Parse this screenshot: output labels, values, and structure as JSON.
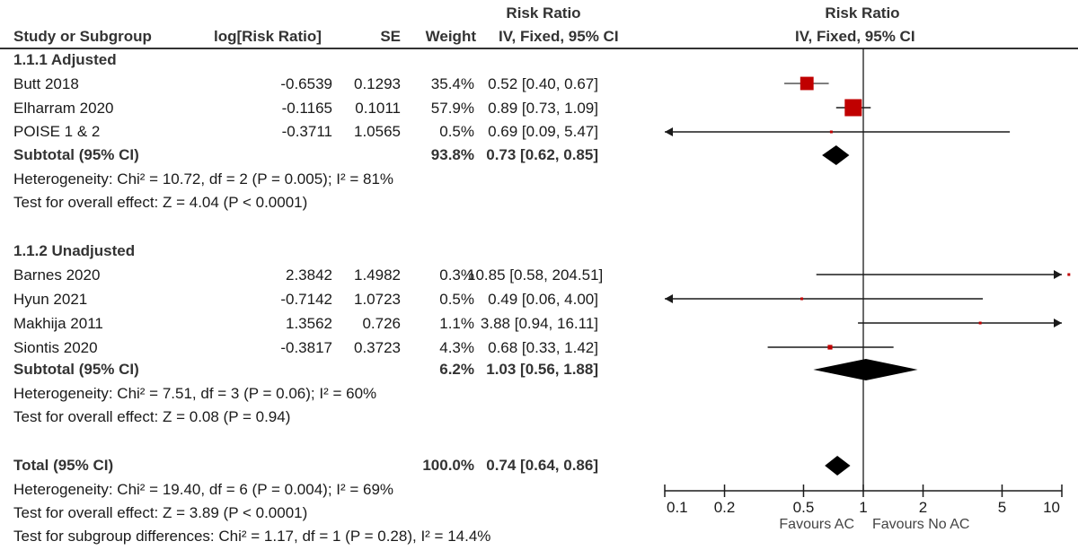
{
  "headers": {
    "study": "Study or Subgroup",
    "logrr": "log[Risk Ratio]",
    "se": "SE",
    "weight": "Weight",
    "rr_top": "Risk Ratio",
    "rr_bottom": "IV, Fixed, 95% CI",
    "plot_top": "Risk Ratio",
    "plot_bottom": "IV, Fixed, 95% CI"
  },
  "chart_data": {
    "type": "forest",
    "title": "Risk Ratio IV, Fixed, 95% CI",
    "xscale": "log",
    "xlim": [
      0.1,
      10
    ],
    "xticks": [
      0.1,
      0.2,
      0.5,
      1,
      2,
      5,
      10
    ],
    "xtick_labels": [
      "0.1",
      "0.2",
      "0.5",
      "1",
      "2",
      "5",
      "10"
    ],
    "favours_left": "Favours AC",
    "favours_right": "Favours No AC",
    "marker_color": "#c00000",
    "subgroups": [
      {
        "label": "1.1.1 Adjusted",
        "studies": [
          {
            "name": "Butt 2018",
            "logrr": "-0.6539",
            "se": "0.1293",
            "weight": "35.4%",
            "ci_text": "0.52 [0.40, 0.67]",
            "rr": 0.52,
            "lo": 0.4,
            "hi": 0.67,
            "w": 35.4
          },
          {
            "name": "Elharram 2020",
            "logrr": "-0.1165",
            "se": "0.1011",
            "weight": "57.9%",
            "ci_text": "0.89 [0.73, 1.09]",
            "rr": 0.89,
            "lo": 0.73,
            "hi": 1.09,
            "w": 57.9
          },
          {
            "name": "POISE 1 & 2",
            "logrr": "-0.3711",
            "se": "1.0565",
            "weight": "0.5%",
            "ci_text": "0.69 [0.09, 5.47]",
            "rr": 0.69,
            "lo": 0.09,
            "hi": 5.47,
            "w": 0.5
          }
        ],
        "subtotal": {
          "label": "Subtotal (95% CI)",
          "weight": "93.8%",
          "ci_text": "0.73 [0.62, 0.85]",
          "rr": 0.73,
          "lo": 0.62,
          "hi": 0.85
        },
        "heterogeneity": "Heterogeneity: Chi² = 10.72, df = 2 (P = 0.005); I² = 81%",
        "overall_effect": "Test for overall effect: Z = 4.04 (P < 0.0001)"
      },
      {
        "label": "1.1.2 Unadjusted",
        "studies": [
          {
            "name": "Barnes 2020",
            "logrr": "2.3842",
            "se": "1.4982",
            "weight": "0.3%",
            "ci_text": "10.85 [0.58, 204.51]",
            "rr": 10.85,
            "lo": 0.58,
            "hi": 204.51,
            "w": 0.3
          },
          {
            "name": "Hyun 2021",
            "logrr": "-0.7142",
            "se": "1.0723",
            "weight": "0.5%",
            "ci_text": "0.49 [0.06, 4.00]",
            "rr": 0.49,
            "lo": 0.06,
            "hi": 4.0,
            "w": 0.5
          },
          {
            "name": "Makhija 2011",
            "logrr": "1.3562",
            "se": "0.726",
            "weight": "1.1%",
            "ci_text": "3.88 [0.94, 16.11]",
            "rr": 3.88,
            "lo": 0.94,
            "hi": 16.11,
            "w": 1.1
          },
          {
            "name": "Siontis 2020",
            "logrr": "-0.3817",
            "se": "0.3723",
            "weight": "4.3%",
            "ci_text": "0.68 [0.33, 1.42]",
            "rr": 0.68,
            "lo": 0.33,
            "hi": 1.42,
            "w": 4.3
          }
        ],
        "subtotal": {
          "label": "Subtotal (95% CI)",
          "weight": "6.2%",
          "ci_text": "1.03 [0.56, 1.88]",
          "rr": 1.03,
          "lo": 0.56,
          "hi": 1.88
        },
        "heterogeneity": "Heterogeneity: Chi² = 7.51, df = 3 (P = 0.06); I² = 60%",
        "overall_effect": "Test for overall effect: Z = 0.08 (P = 0.94)"
      }
    ],
    "total": {
      "label": "Total (95% CI)",
      "weight": "100.0%",
      "ci_text": "0.74 [0.64, 0.86]",
      "rr": 0.74,
      "lo": 0.64,
      "hi": 0.86
    },
    "total_heterogeneity": "Heterogeneity: Chi² = 19.40, df = 6 (P = 0.004); I² = 69%",
    "total_overall_effect": "Test for overall effect: Z = 3.89 (P < 0.0001)",
    "subgroup_differences": "Test for subgroup differences: Chi² = 1.17, df = 1 (P = 0.28), I² = 14.4%"
  }
}
